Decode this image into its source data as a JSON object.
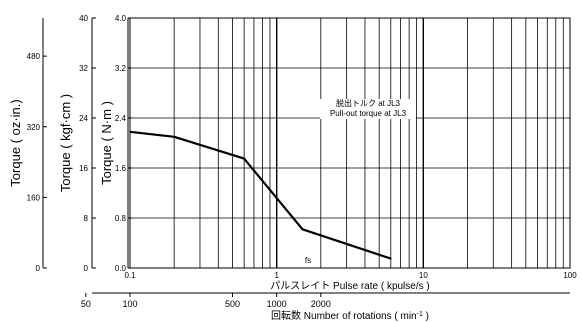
{
  "chart_data": {
    "type": "line",
    "x_scale": "log",
    "xlim": [
      0.1,
      100
    ],
    "ylim": [
      0,
      4.0
    ],
    "grid": true,
    "x_tick_labels": [
      "0.1",
      "1",
      "10",
      "100"
    ],
    "xlabel": "パルスレイト Pulse rate ( kpulse/s )",
    "y_axes": [
      {
        "label": "Torque ( N·m )",
        "ticks": [
          "4.0",
          "3.2",
          "2.4",
          "1.6",
          "0.8",
          "0.0"
        ],
        "tick_values": [
          4.0,
          3.2,
          2.4,
          1.6,
          0.8,
          0.0
        ]
      },
      {
        "label": "Torque ( kgf·cm )",
        "ticks": [
          "40",
          "32",
          "24",
          "16",
          "8",
          "0"
        ],
        "tick_values": [
          4.0,
          3.2,
          2.4,
          1.6,
          0.8,
          0.0
        ]
      },
      {
        "label": "Torque ( oz·in.)",
        "ticks": [
          "480",
          "320",
          "160",
          "0"
        ],
        "tick_values": [
          3.39,
          2.26,
          1.13,
          0.0
        ]
      }
    ],
    "rotation_axis": {
      "label_prefix": "回転数 Number of rotations ( min",
      "label_suffix": "-1",
      "label_close": " )",
      "ticks": [
        {
          "label": "50",
          "x": 0.05
        },
        {
          "label": "100",
          "x": 0.1
        },
        {
          "label": "500",
          "x": 0.5
        },
        {
          "label": "1000",
          "x": 1.0
        },
        {
          "label": "2000",
          "x": 2.0
        }
      ]
    },
    "series": [
      {
        "x": [
          0.1,
          0.2,
          0.6,
          1.5,
          6.0
        ],
        "y": [
          2.18,
          2.1,
          1.75,
          0.62,
          0.15
        ]
      }
    ],
    "annotations": {
      "line1": "脱出トルク at JL3",
      "line2": "Pull-out torque at JL3",
      "fs": "fs"
    }
  }
}
